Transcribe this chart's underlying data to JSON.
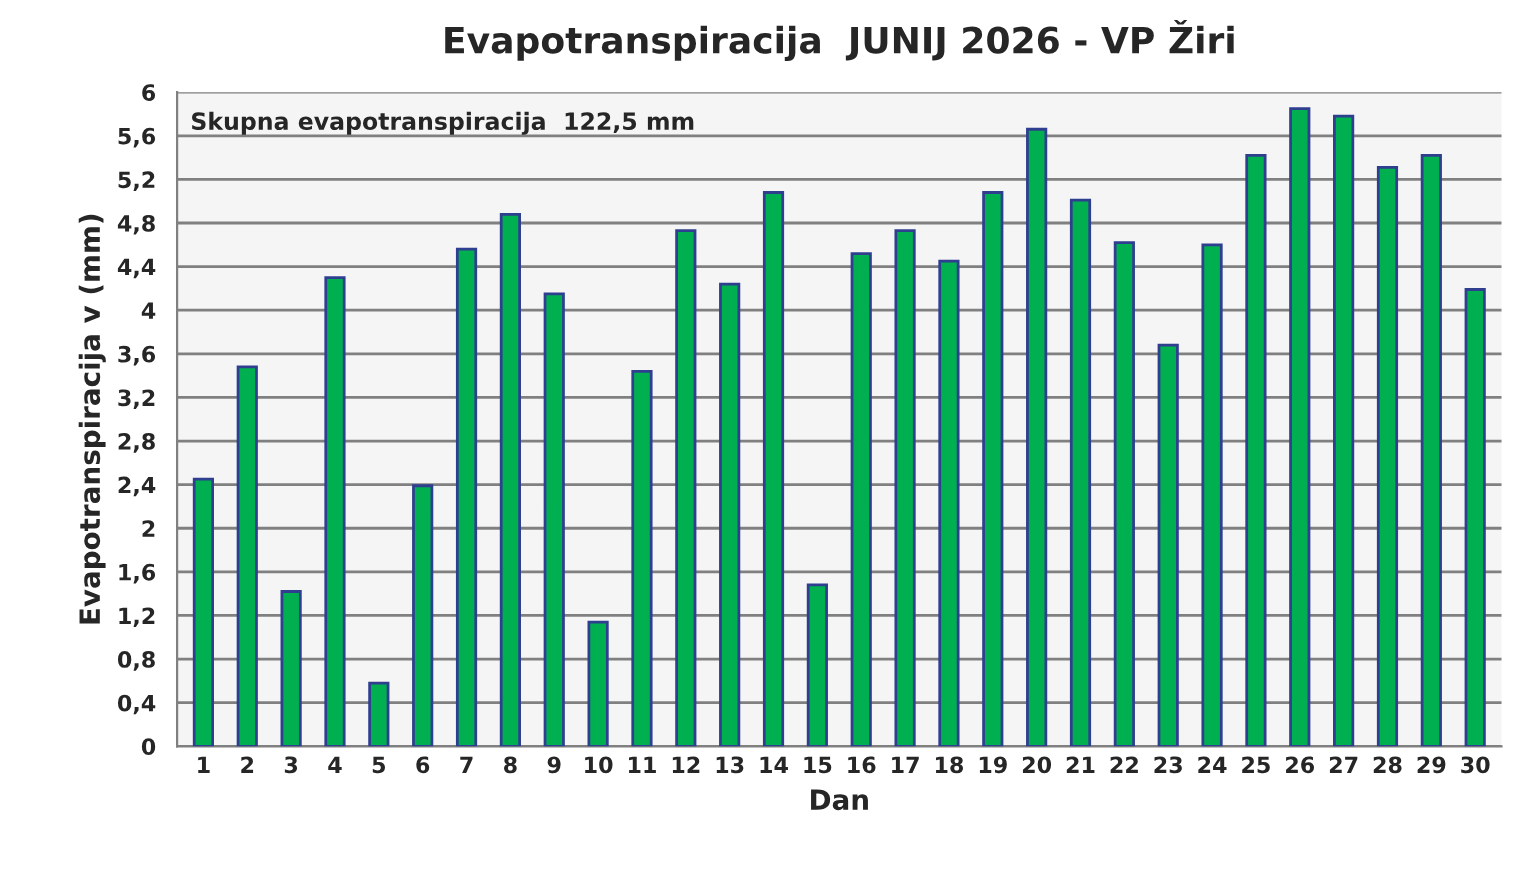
{
  "chart_data": {
    "type": "bar",
    "title": "Evapotranspiracija  JUNIJ 2026 - VP Žiri",
    "xlabel": "Dan",
    "ylabel": "Evapotranspiracija v (mm)",
    "categories": [
      "1",
      "2",
      "3",
      "4",
      "5",
      "6",
      "7",
      "8",
      "9",
      "10",
      "11",
      "12",
      "13",
      "14",
      "15",
      "16",
      "17",
      "18",
      "19",
      "20",
      "21",
      "22",
      "23",
      "24",
      "25",
      "26",
      "27",
      "28",
      "29",
      "30"
    ],
    "series": [
      {
        "color": "#00b050",
        "values": [
          2.45,
          3.48,
          1.42,
          4.3,
          0.58,
          2.39,
          4.56,
          4.88,
          4.15,
          1.14,
          3.44,
          4.73,
          4.24,
          5.08,
          1.48,
          4.52,
          4.73,
          4.45,
          5.08,
          5.66,
          5.01,
          4.62,
          3.68,
          4.6,
          5.42,
          5.85,
          5.78,
          5.31,
          5.42,
          4.19
        ]
      }
    ],
    "ylim": [
      0,
      6
    ],
    "yticks": [
      0,
      {
        "value": 0.4,
        "label": "0,4"
      },
      {
        "value": 0.8,
        "label": "0,8"
      },
      {
        "value": 1.2,
        "label": "1,2"
      },
      {
        "value": 1.6,
        "label": "1,6"
      },
      2,
      {
        "value": 2.4,
        "label": "2,4"
      },
      {
        "value": 2.8,
        "label": "2,8"
      },
      {
        "value": 3.2,
        "label": "3,2"
      },
      {
        "value": 3.6,
        "label": "3,6"
      },
      4,
      {
        "value": 4.4,
        "label": "4,4"
      },
      {
        "value": 4.8,
        "label": "4,8"
      },
      {
        "value": 5.2,
        "label": "5,2"
      },
      {
        "value": 5.6,
        "label": "5,6"
      },
      6
    ],
    "annotations": [
      "Skupna evapotranspiracija  122,5 mm"
    ],
    "grid": "y"
  }
}
